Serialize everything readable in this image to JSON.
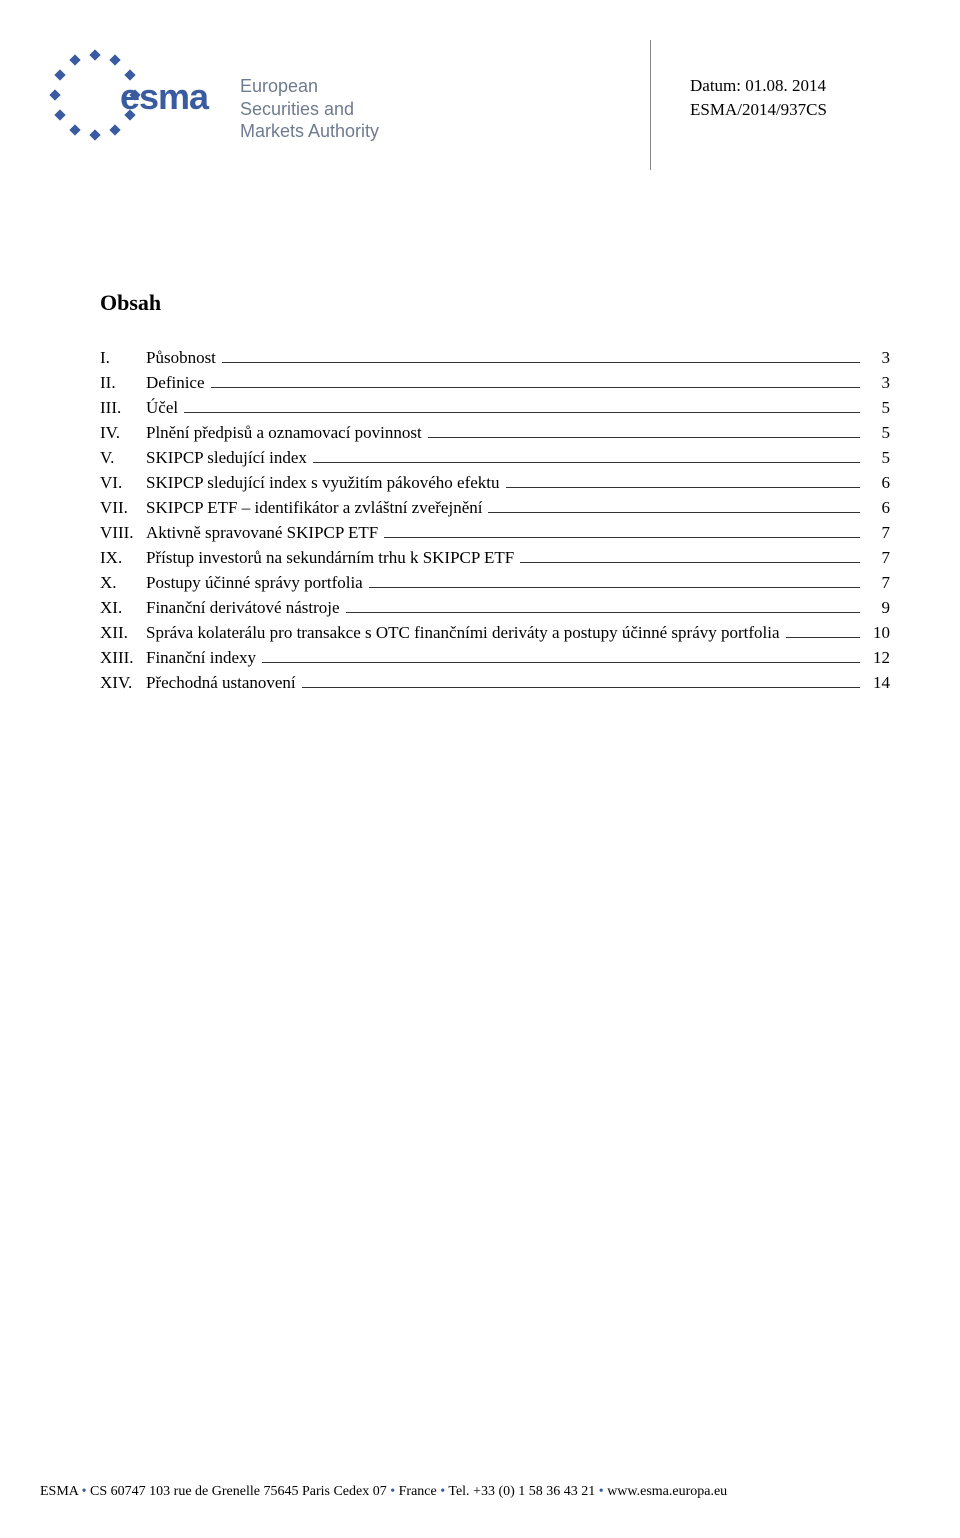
{
  "brand": {
    "word": "esma",
    "sub1": "European Securities and",
    "sub2": "Markets Authority",
    "star_color": "#3a5ba0",
    "text_color": "#3a5ba0",
    "sub_color": "#6f7b8f"
  },
  "meta": {
    "date_label": "Datum: 01.08. 2014",
    "ref": "ESMA/2014/937CS"
  },
  "title": "Obsah",
  "toc": {
    "items": [
      {
        "rn": "I.",
        "label": "Působnost",
        "page": "3"
      },
      {
        "rn": "II.",
        "label": "Definice",
        "page": "3"
      },
      {
        "rn": "III.",
        "label": "Účel",
        "page": "5"
      },
      {
        "rn": "IV.",
        "label": "Plnění předpisů a oznamovací povinnost",
        "page": "5"
      },
      {
        "rn": "V.",
        "label": "SKIPCP sledující index",
        "page": "5"
      },
      {
        "rn": "VI.",
        "label": "SKIPCP sledující index s využitím pákového efektu",
        "page": "6"
      },
      {
        "rn": "VII.",
        "label": "SKIPCP ETF – identifikátor a zvláštní zveřejnění",
        "page": "6"
      },
      {
        "rn": "VIII.",
        "label": "Aktivně spravované SKIPCP ETF",
        "page": "7"
      },
      {
        "rn": "IX.",
        "label": "Přístup investorů na sekundárním trhu k SKIPCP ETF",
        "page": "7"
      },
      {
        "rn": "X.",
        "label": "Postupy účinné správy portfolia",
        "page": "7"
      },
      {
        "rn": "XI.",
        "label": "Finanční derivátové nástroje",
        "page": "9"
      },
      {
        "rn": "XII.",
        "label": "Správa kolaterálu pro transakce s OTC finančními deriváty a postupy účinné správy portfolia",
        "page": "10"
      },
      {
        "rn": "XIII.",
        "label": "Finanční indexy",
        "page": "12"
      },
      {
        "rn": "XIV.",
        "label": "Přechodná ustanovení",
        "page": "14"
      }
    ]
  },
  "footer": {
    "parts": [
      "ESMA ",
      "•",
      " CS 60747 103 rue de Grenelle 75645 Paris Cedex 07 ",
      "•",
      " France ",
      "•",
      " Tel. +33 (0) 1 58 36 43 21 ",
      "•",
      " www.esma.europa.eu"
    ]
  }
}
